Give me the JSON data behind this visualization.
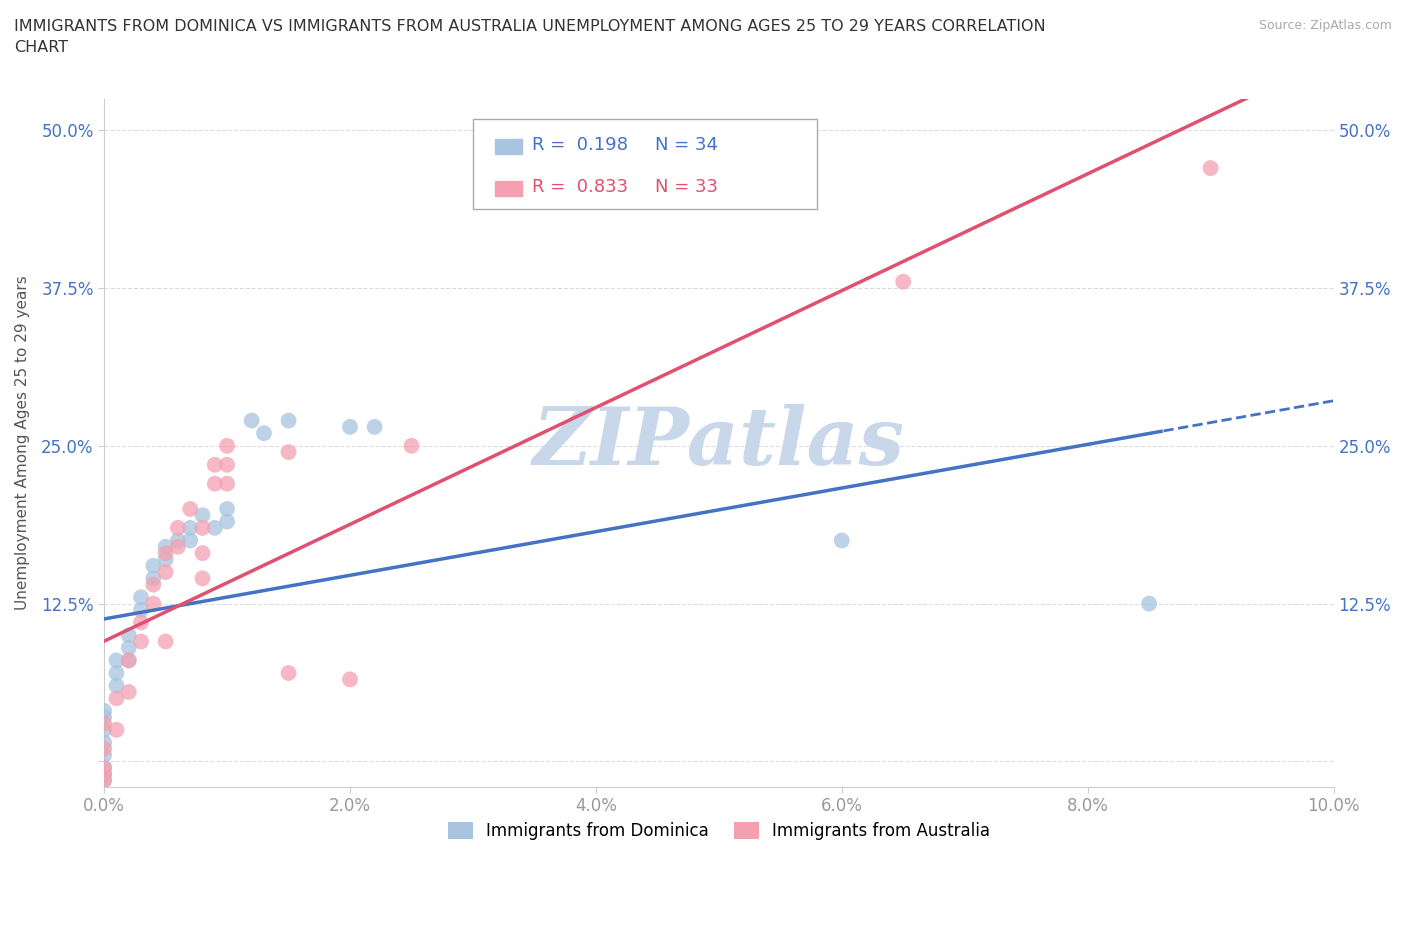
{
  "title": "IMMIGRANTS FROM DOMINICA VS IMMIGRANTS FROM AUSTRALIA UNEMPLOYMENT AMONG AGES 25 TO 29 YEARS CORRELATION\nCHART",
  "source": "Source: ZipAtlas.com",
  "ylabel": "Unemployment Among Ages 25 to 29 years",
  "xlim": [
    0.0,
    0.1
  ],
  "ylim": [
    -0.02,
    0.525
  ],
  "xticks": [
    0.0,
    0.02,
    0.04,
    0.06,
    0.08,
    0.1
  ],
  "xticklabels": [
    "0.0%",
    "2.0%",
    "4.0%",
    "6.0%",
    "8.0%",
    "10.0%"
  ],
  "yticks": [
    0.0,
    0.125,
    0.25,
    0.375,
    0.5
  ],
  "yticklabels": [
    "",
    "12.5%",
    "25.0%",
    "37.5%",
    "50.0%"
  ],
  "dominica_color": "#a8c4e0",
  "australia_color": "#f4a0b0",
  "dominica_line_color": "#4472c4",
  "australia_line_color": "#e05070",
  "R_dominica": 0.198,
  "N_dominica": 34,
  "R_australia": 0.833,
  "N_australia": 33,
  "watermark": "ZIPatlas",
  "watermark_color": "#c8d8ea",
  "dominica_x": [
    0.0,
    0.0,
    0.0,
    0.0,
    0.0,
    0.0,
    0.0,
    0.0,
    0.001,
    0.001,
    0.001,
    0.002,
    0.002,
    0.002,
    0.003,
    0.003,
    0.004,
    0.004,
    0.005,
    0.005,
    0.006,
    0.007,
    0.007,
    0.008,
    0.009,
    0.01,
    0.01,
    0.012,
    0.013,
    0.015,
    0.02,
    0.022,
    0.06,
    0.085
  ],
  "dominica_y": [
    0.04,
    0.035,
    0.025,
    0.015,
    0.005,
    -0.005,
    -0.01,
    -0.015,
    0.08,
    0.07,
    0.06,
    0.1,
    0.09,
    0.08,
    0.13,
    0.12,
    0.155,
    0.145,
    0.17,
    0.16,
    0.175,
    0.185,
    0.175,
    0.195,
    0.185,
    0.2,
    0.19,
    0.27,
    0.26,
    0.27,
    0.265,
    0.265,
    0.175,
    0.125
  ],
  "australia_x": [
    0.0,
    0.0,
    0.0,
    0.0,
    0.0,
    0.001,
    0.001,
    0.002,
    0.002,
    0.003,
    0.003,
    0.004,
    0.004,
    0.005,
    0.005,
    0.005,
    0.006,
    0.006,
    0.007,
    0.008,
    0.008,
    0.008,
    0.009,
    0.009,
    0.01,
    0.01,
    0.01,
    0.015,
    0.015,
    0.02,
    0.025,
    0.065,
    0.09
  ],
  "australia_y": [
    0.03,
    0.01,
    -0.005,
    -0.01,
    -0.015,
    0.05,
    0.025,
    0.08,
    0.055,
    0.11,
    0.095,
    0.14,
    0.125,
    0.165,
    0.15,
    0.095,
    0.185,
    0.17,
    0.2,
    0.185,
    0.165,
    0.145,
    0.235,
    0.22,
    0.25,
    0.235,
    0.22,
    0.245,
    0.07,
    0.065,
    0.25,
    0.38,
    0.47
  ],
  "background_color": "#ffffff",
  "grid_color": "#dddddd"
}
